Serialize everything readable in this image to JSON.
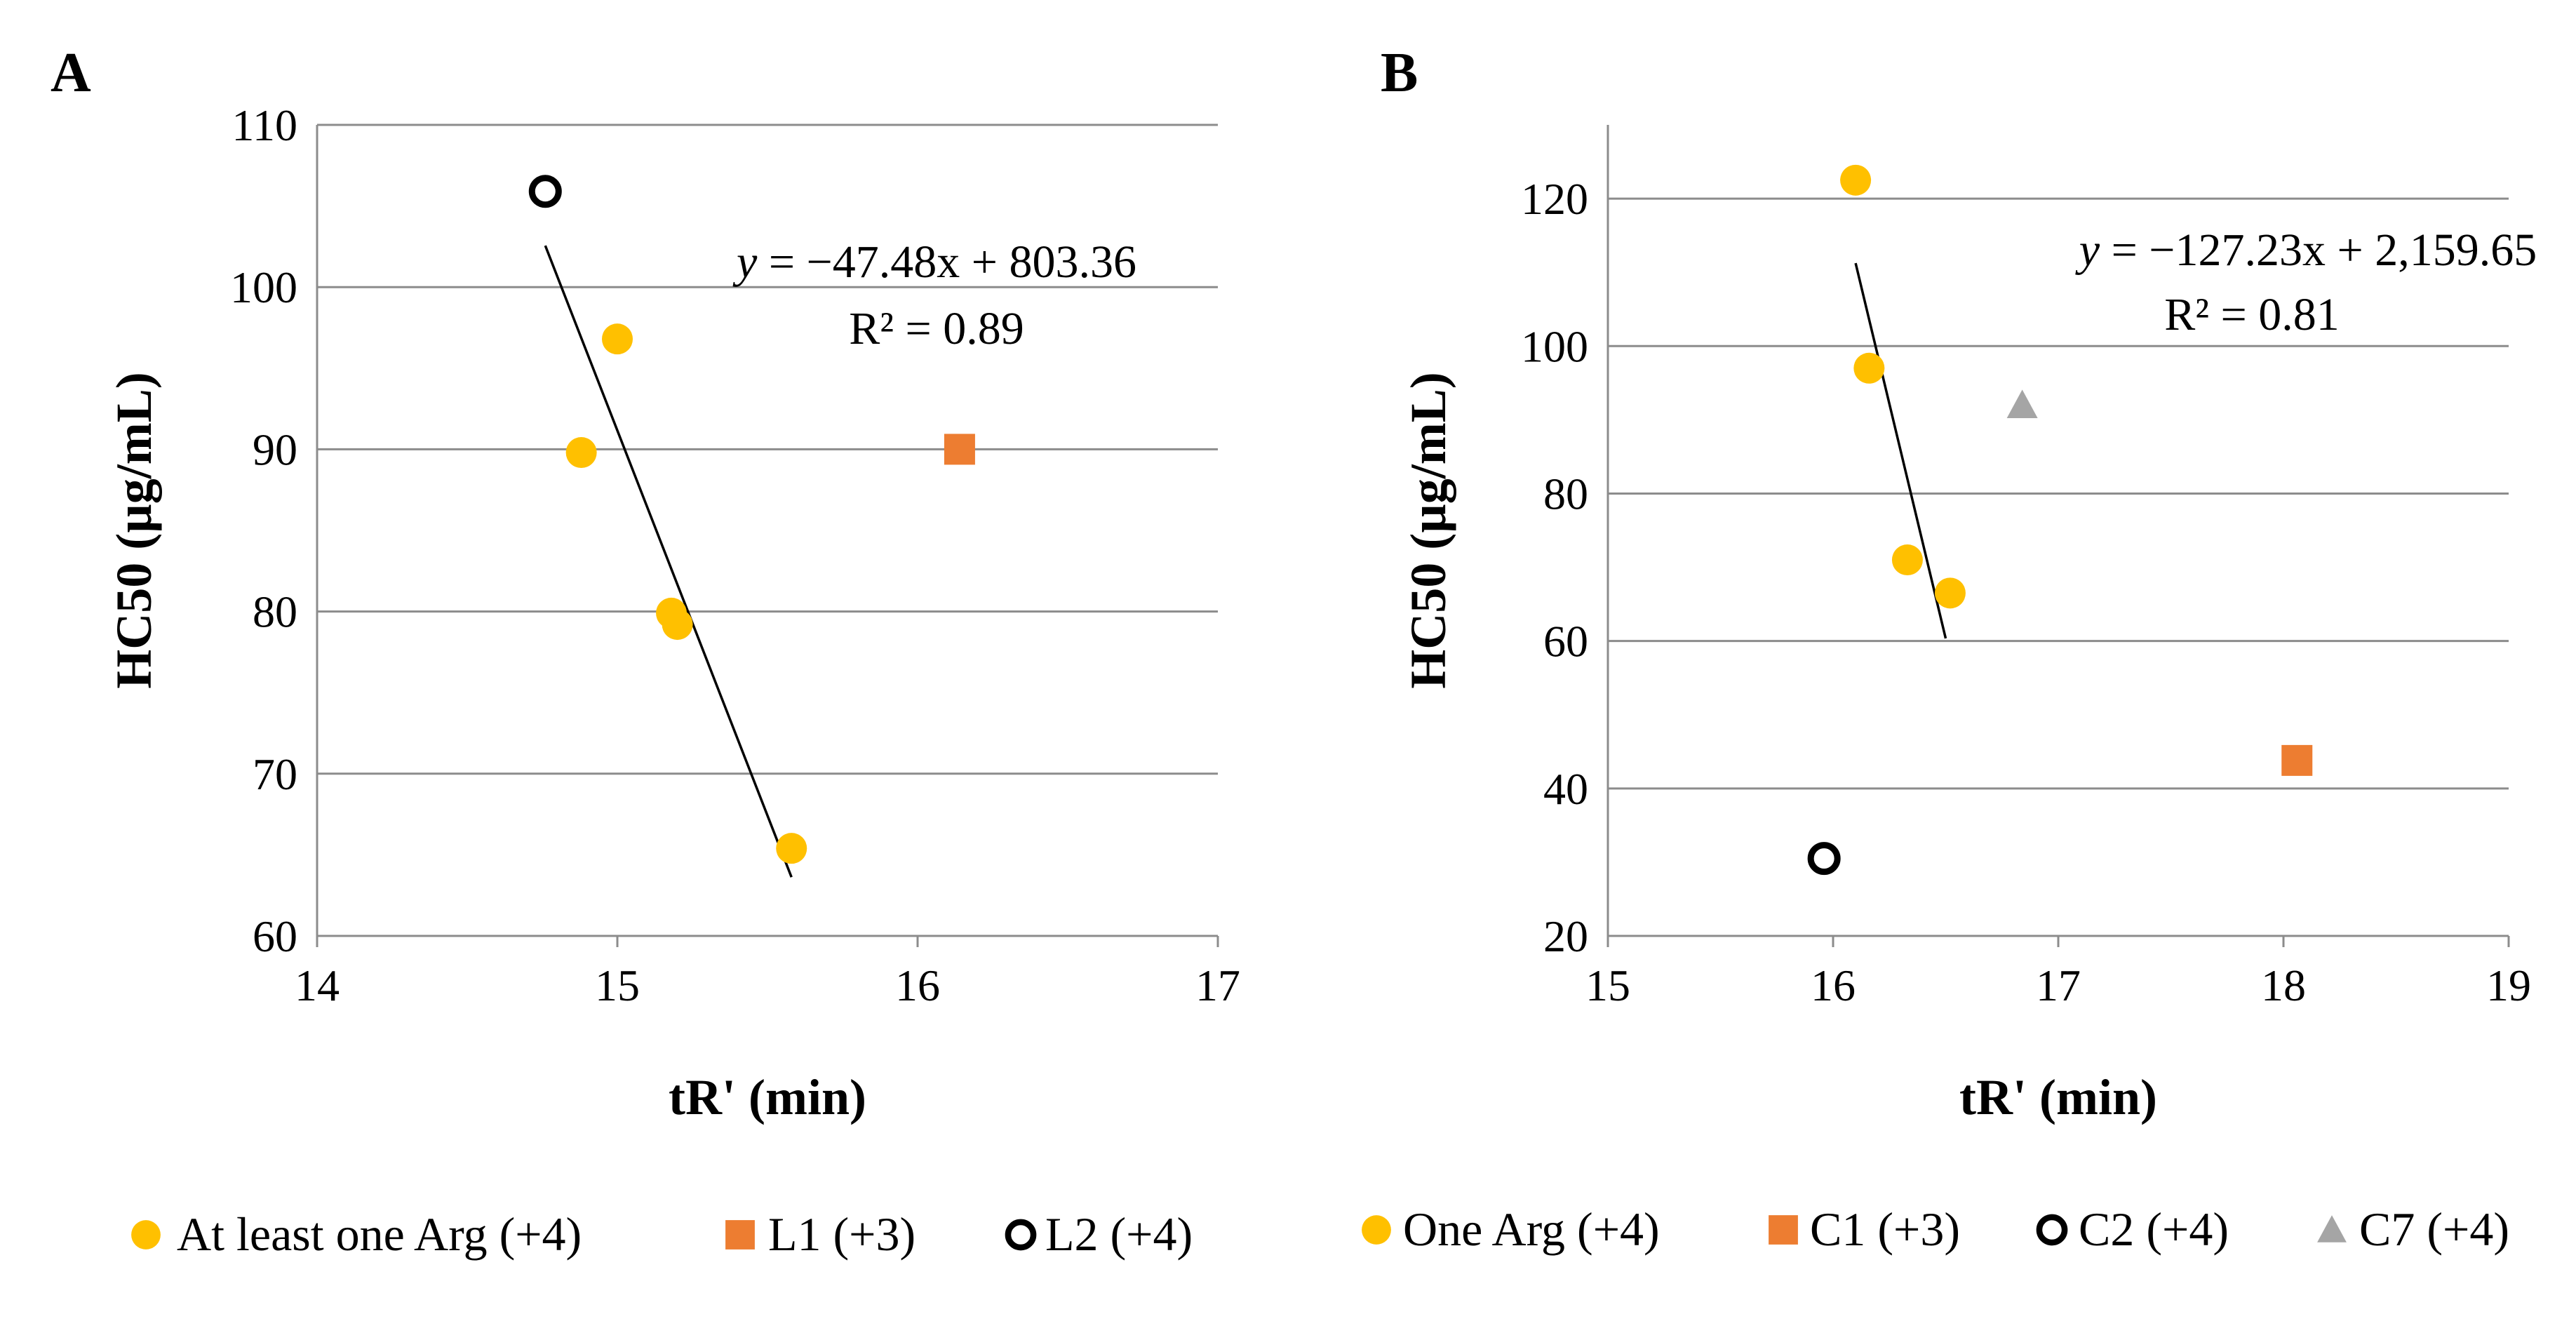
{
  "chart_data": [
    {
      "type": "scatter",
      "panel": "A",
      "xlabel": "tR' (min)",
      "ylabel": "HC50 (µg/mL)",
      "xlim": [
        14,
        17
      ],
      "ylim": [
        60,
        110
      ],
      "xticks": [
        14,
        15,
        16,
        17
      ],
      "yticks": [
        60,
        70,
        80,
        90,
        100,
        110
      ],
      "grid": "horizontal",
      "series": [
        {
          "name": "At least one Arg (+4)",
          "marker": "circle",
          "color": "#FFC000",
          "points": [
            [
              15.0,
              96.8
            ],
            [
              14.88,
              89.8
            ],
            [
              15.18,
              79.9
            ],
            [
              15.2,
              79.2
            ],
            [
              15.58,
              65.4
            ]
          ]
        },
        {
          "name": "L1 (+3)",
          "marker": "square",
          "color": "#ED7D31",
          "points": [
            [
              16.14,
              90.0
            ]
          ]
        },
        {
          "name": "L2 (+4)",
          "marker": "open-circle",
          "color": "#000000",
          "points": [
            [
              14.76,
              105.9
            ]
          ]
        }
      ],
      "trendline": {
        "x": [
          14.76,
          15.58
        ],
        "slope": -47.48,
        "intercept": 803.36
      },
      "equation": "y = −47.48x + 803.36",
      "r2": "R² = 0.89"
    },
    {
      "type": "scatter",
      "panel": "B",
      "xlabel": "tR' (min)",
      "ylabel": "HC50 (µg/mL)",
      "xlim": [
        15,
        19
      ],
      "ylim": [
        20,
        130
      ],
      "xticks": [
        15,
        16,
        17,
        18,
        19
      ],
      "yticks": [
        20,
        40,
        60,
        80,
        100,
        120
      ],
      "grid": "horizontal",
      "series": [
        {
          "name": "One Arg (+4)",
          "marker": "circle",
          "color": "#FFC000",
          "points": [
            [
              16.1,
              122.5
            ],
            [
              16.16,
              97.0
            ],
            [
              16.33,
              71.0
            ],
            [
              16.52,
              66.5
            ]
          ]
        },
        {
          "name": "C1 (+3)",
          "marker": "square",
          "color": "#ED7D31",
          "points": [
            [
              18.06,
              43.8
            ]
          ]
        },
        {
          "name": "C2 (+4)",
          "marker": "open-circle",
          "color": "#000000",
          "points": [
            [
              15.96,
              30.5
            ]
          ]
        },
        {
          "name": "C7 (+4)",
          "marker": "triangle",
          "color": "#A5A5A5",
          "points": [
            [
              16.84,
              92.0
            ]
          ]
        }
      ],
      "trendline": {
        "x": [
          16.1,
          16.5
        ],
        "slope": -127.23,
        "intercept": 2159.65
      },
      "equation": "y = −127.23x + 2,159.65",
      "r2": "R² = 0.81"
    }
  ]
}
